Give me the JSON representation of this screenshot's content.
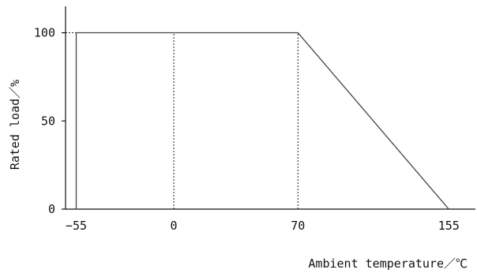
{
  "chart_data": {
    "type": "line",
    "title": "",
    "xlabel": "Ambient temperature／℃",
    "ylabel": "Rated load／%",
    "xlim": [
      -61,
      170
    ],
    "ylim": [
      0,
      115
    ],
    "x_ticks": [
      -55,
      0,
      70,
      155
    ],
    "x_tick_labels": [
      "−55",
      "0",
      "70",
      "155"
    ],
    "y_ticks": [
      0,
      50,
      100
    ],
    "y_tick_labels": [
      "0",
      "50",
      "100"
    ],
    "grid": false,
    "legend": "none",
    "series": [
      {
        "x": [
          -55,
          -55,
          70,
          155
        ],
        "y": [
          0,
          100,
          100,
          0
        ],
        "color": "#444444"
      }
    ],
    "reference_lines": [
      {
        "orientation": "horizontal",
        "y": 100,
        "x_from": -61,
        "x_to": -55,
        "style": "dotted"
      },
      {
        "orientation": "vertical",
        "x": 0,
        "y_from": 0,
        "y_to": 100,
        "style": "dotted"
      },
      {
        "orientation": "vertical",
        "x": 70,
        "y_from": 0,
        "y_to": 100,
        "style": "dotted"
      }
    ]
  }
}
